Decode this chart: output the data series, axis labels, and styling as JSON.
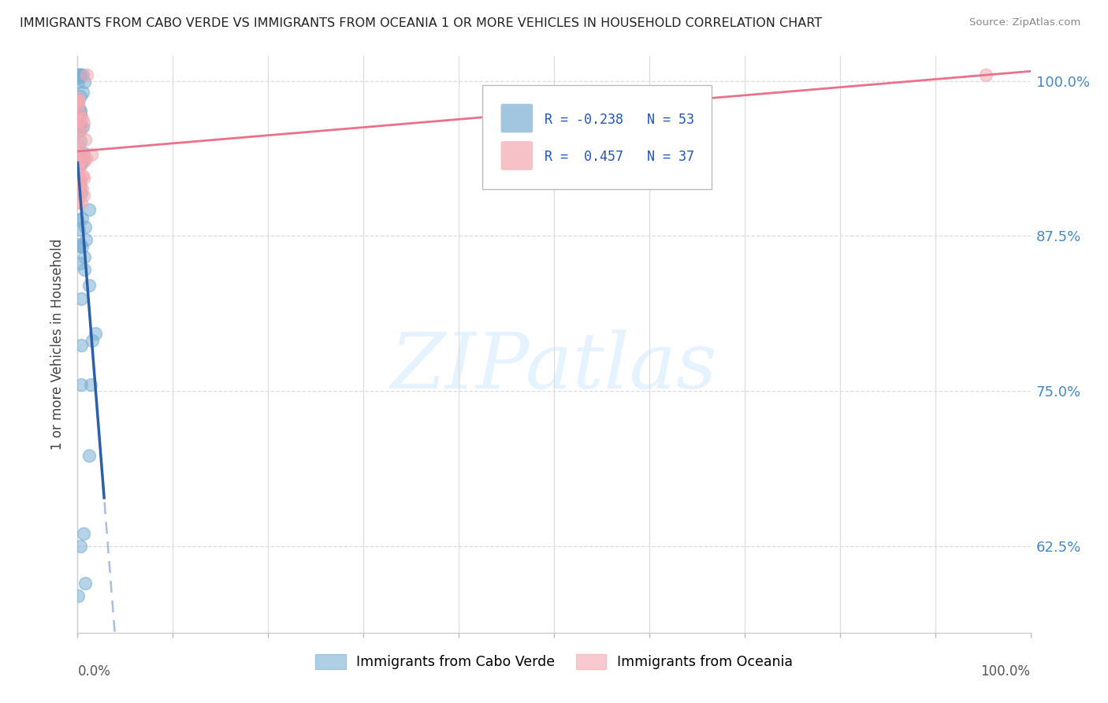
{
  "title": "IMMIGRANTS FROM CABO VERDE VS IMMIGRANTS FROM OCEANIA 1 OR MORE VEHICLES IN HOUSEHOLD CORRELATION CHART",
  "source": "Source: ZipAtlas.com",
  "ylabel": "1 or more Vehicles in Household",
  "yticks": [
    0.625,
    0.75,
    0.875,
    1.0
  ],
  "ytick_labels": [
    "62.5%",
    "75.0%",
    "87.5%",
    "100.0%"
  ],
  "cabo_verde_r": -0.238,
  "cabo_verde_n": 53,
  "oceania_r": 0.457,
  "oceania_n": 37,
  "cabo_verde_color": "#7BAFD4",
  "oceania_color": "#F4A8B0",
  "cabo_verde_line_color": "#2B5FA8",
  "oceania_line_color": "#E8728A",
  "cabo_verde_dash_color": "#AABFDD",
  "background_color": "#FFFFFF",
  "grid_color": "#DDDDDD",
  "title_color": "#333333",
  "right_tick_color": "#4488CC",
  "legend_r1": "R = -0.238",
  "legend_n1": "N = 53",
  "legend_r2": "R =  0.457",
  "legend_n2": "N = 37",
  "xlim": [
    0.0,
    1.0
  ],
  "ylim": [
    0.555,
    1.02
  ],
  "watermark": "ZIPatlas"
}
